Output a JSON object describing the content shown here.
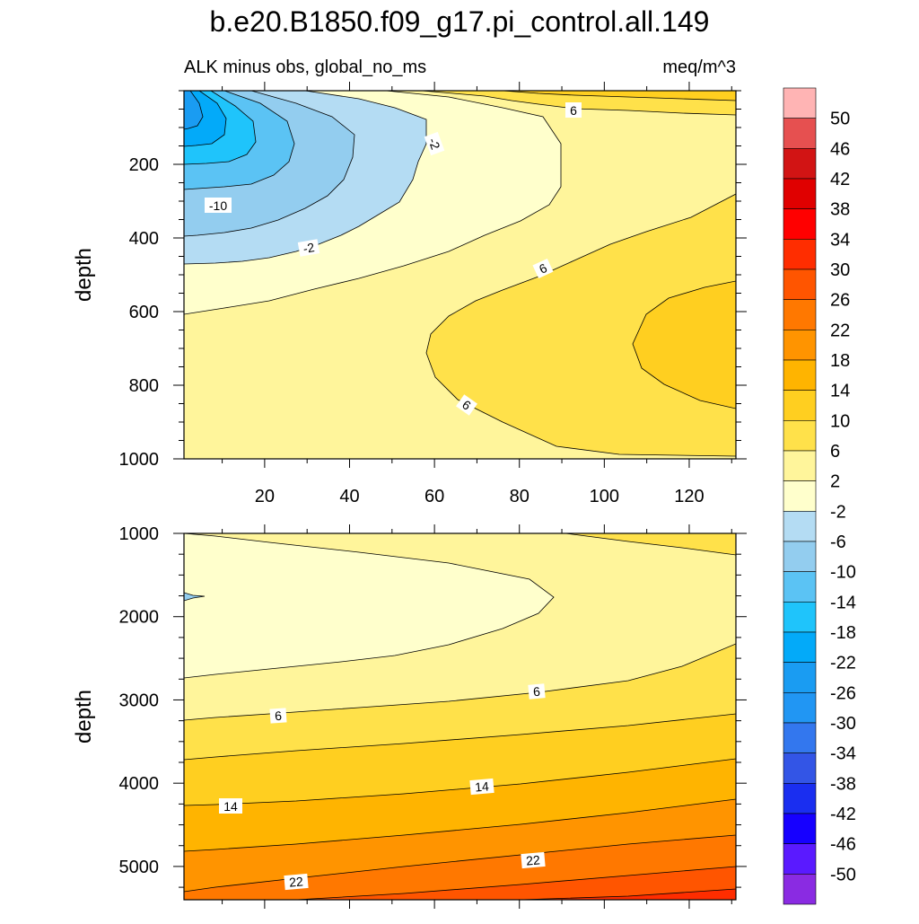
{
  "chart_data": {
    "type": "contour",
    "title": "b.e20.B1850.f09_g17.pi_control.all.149",
    "subtitle_left": "ALK minus obs, global_no_ms",
    "subtitle_right": "meq/m^3",
    "ylabel": "depth",
    "panels": [
      {
        "name": "upper",
        "xlim": [
          1,
          131
        ],
        "ylim": [
          0,
          1000
        ],
        "y_inverted": true,
        "x_ticks": [
          20,
          40,
          60,
          80,
          100,
          120
        ],
        "y_ticks": [
          200,
          400,
          600,
          800,
          1000
        ],
        "contour_labels": [
          {
            "text": "6",
            "x": 94,
            "y": 50
          },
          {
            "text": "-2",
            "x": 61,
            "y": 145
          },
          {
            "text": "-10",
            "x": 9,
            "y": 320
          },
          {
            "text": "-2",
            "x": 30,
            "y": 430
          },
          {
            "text": "6",
            "x": 86,
            "y": 480
          },
          {
            "text": "6",
            "x": 68,
            "y": 835
          }
        ]
      },
      {
        "name": "lower",
        "xlim": [
          1,
          131
        ],
        "ylim": [
          1000,
          5400
        ],
        "y_inverted": true,
        "x_ticks": [
          20,
          40,
          60,
          80,
          100,
          120
        ],
        "y_ticks": [
          1000,
          2000,
          3000,
          4000,
          5000
        ],
        "contour_labels": [
          {
            "text": "6",
            "x": 85,
            "y": 2880
          },
          {
            "text": "6",
            "x": 24,
            "y": 3160
          },
          {
            "text": "14",
            "x": 73,
            "y": 4020
          },
          {
            "text": "14",
            "x": 12,
            "y": 4250
          },
          {
            "text": "22",
            "x": 85,
            "y": 4920
          },
          {
            "text": "22",
            "x": 27,
            "y": 5150
          }
        ]
      }
    ],
    "colorbar": {
      "levels": [
        -50,
        -46,
        -42,
        -38,
        -34,
        -30,
        -26,
        -22,
        -18,
        -14,
        -10,
        -6,
        -2,
        2,
        6,
        10,
        14,
        18,
        22,
        26,
        30,
        34,
        38,
        42,
        46,
        50
      ],
      "colors": [
        "#8a2be2",
        "#5a1aff",
        "#1600ff",
        "#1a2ef0",
        "#3355e6",
        "#3377ee",
        "#2196f3",
        "#1a9cf2",
        "#03aaf9",
        "#1fc4fb",
        "#5bc3f4",
        "#93cdef",
        "#b4dcf3",
        "#ffffcc",
        "#fff59b",
        "#ffe14a",
        "#ffcf20",
        "#ffb400",
        "#ff9400",
        "#ff7800",
        "#ff5500",
        "#ff2d00",
        "#ff0000",
        "#e00000",
        "#d21414",
        "#e65050",
        "#ffb4b4"
      ]
    },
    "colors": {
      "c_m22": "#1a9cf2",
      "c_m18": "#03aaf9",
      "c_m14": "#1fc4fb",
      "c_m10": "#5bc3f4",
      "c_m6": "#93cdef",
      "c_m2": "#b4dcf3",
      "c_2": "#ffffcc",
      "c_6": "#fff59b",
      "c_10": "#ffe14a",
      "c_14": "#ffcf20",
      "c_18": "#ffb400",
      "c_22": "#ff9400",
      "c_26": "#ff7800",
      "c_30": "#ff5500",
      "c_34": "#ff2d00"
    }
  }
}
